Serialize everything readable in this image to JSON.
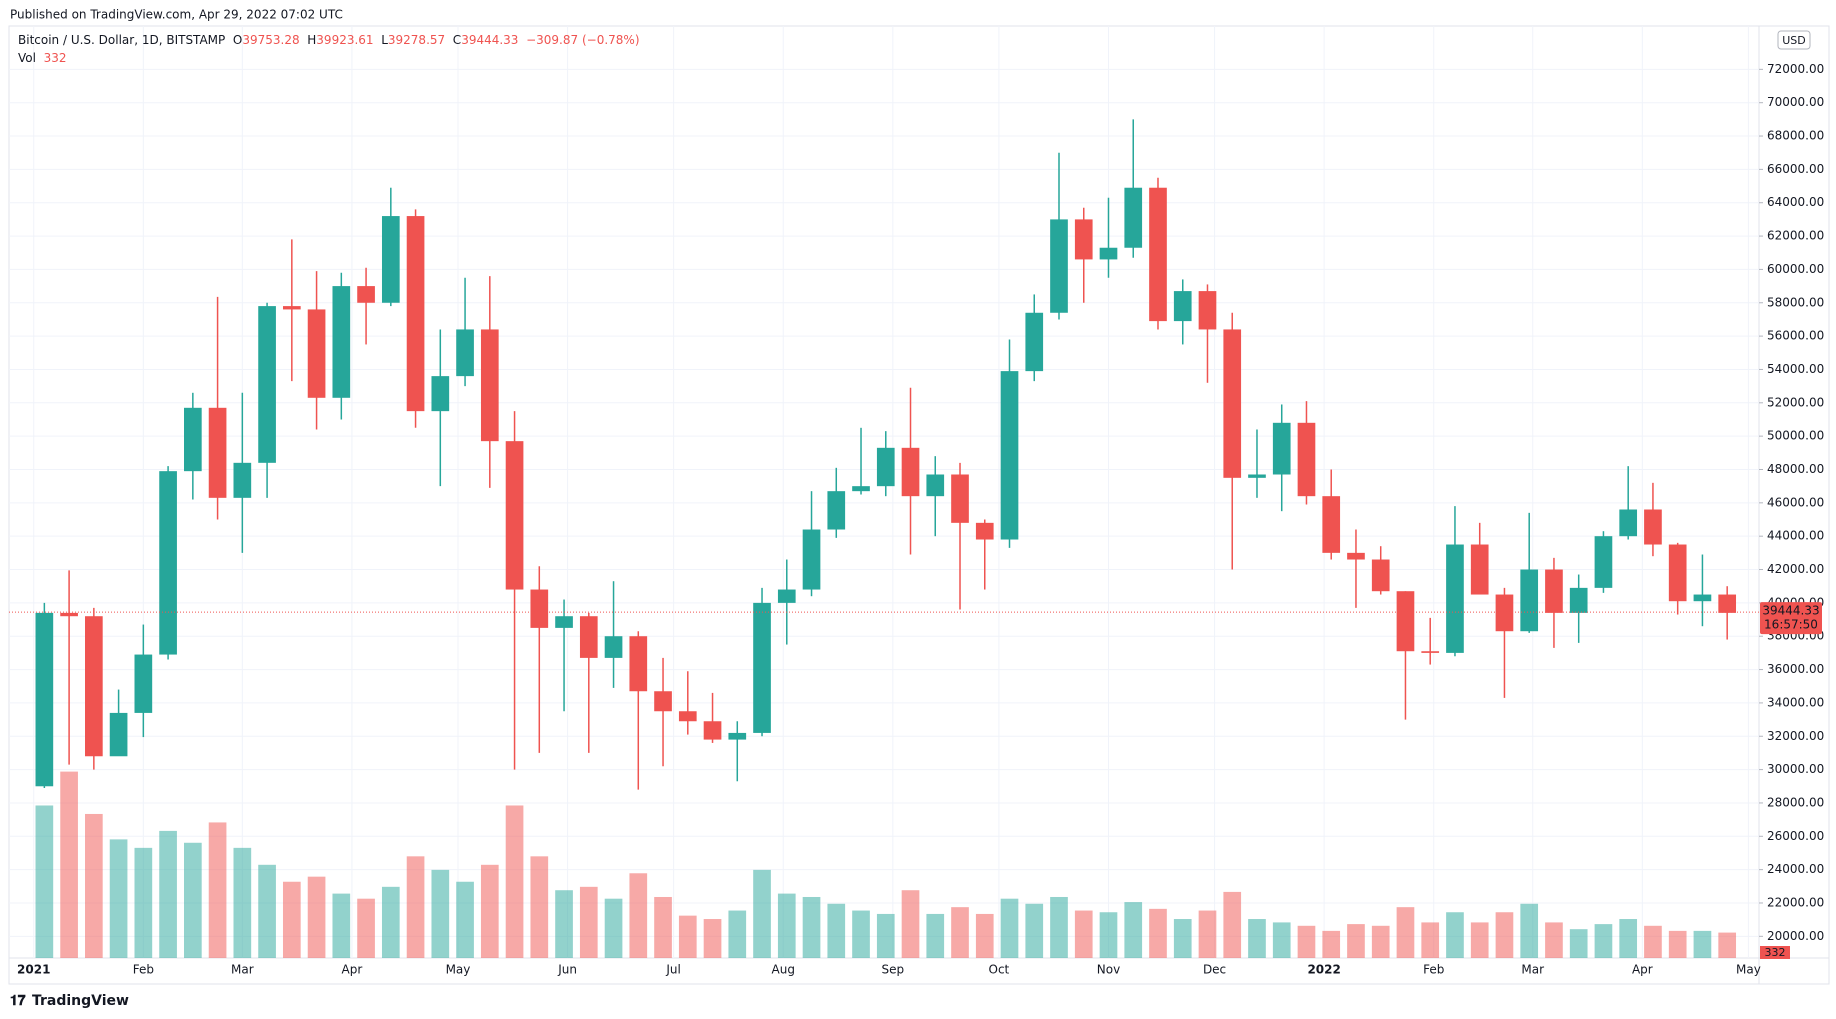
{
  "published": "Published on TradingView.com, Apr 29, 2022 07:02 UTC",
  "logo": "TradingView",
  "chart_data": {
    "type": "candlestick",
    "symbol": "Bitcoin / U.S. Dollar, 1D, BITSTAMP",
    "ohlc_labels": {
      "open": "O",
      "high": "H",
      "low": "L",
      "close": "C"
    },
    "ohlc": {
      "open": 39753.28,
      "high": 39923.61,
      "low": 39278.57,
      "close": 39444.33
    },
    "change": {
      "value": -309.87,
      "label": "−309.87"
    },
    "change_pct": {
      "value": -0.78,
      "label": "(−0.78%)"
    },
    "volume_title": "Vol",
    "last_volume": 332,
    "countdown": "16:57:50",
    "currency": "USD",
    "up_color": "#26a69a",
    "down_color": "#ef5350",
    "grid": true,
    "xlim": [
      -7,
      488
    ],
    "ylim": [
      18700,
      74600
    ],
    "volume_lim": [
      0,
      55000
    ],
    "xticks": [
      {
        "value": 0,
        "label": "2021"
      },
      {
        "value": 31,
        "label": "Feb"
      },
      {
        "value": 59,
        "label": "Mar"
      },
      {
        "value": 90,
        "label": "Apr"
      },
      {
        "value": 120,
        "label": "May"
      },
      {
        "value": 151,
        "label": "Jun"
      },
      {
        "value": 181,
        "label": "Jul"
      },
      {
        "value": 212,
        "label": "Aug"
      },
      {
        "value": 243,
        "label": "Sep"
      },
      {
        "value": 273,
        "label": "Oct"
      },
      {
        "value": 304,
        "label": "Nov"
      },
      {
        "value": 334,
        "label": "Dec"
      },
      {
        "value": 365,
        "label": "2022"
      },
      {
        "value": 396,
        "label": "Feb"
      },
      {
        "value": 424,
        "label": "Mar"
      },
      {
        "value": 455,
        "label": "Apr"
      },
      {
        "value": 485,
        "label": "May"
      }
    ],
    "yticks": [
      {
        "value": 20000,
        "label": "20000.00"
      },
      {
        "value": 22000,
        "label": "22000.00"
      },
      {
        "value": 24000,
        "label": "24000.00"
      },
      {
        "value": 26000,
        "label": "26000.00"
      },
      {
        "value": 28000,
        "label": "28000.00"
      },
      {
        "value": 30000,
        "label": "30000.00"
      },
      {
        "value": 32000,
        "label": "32000.00"
      },
      {
        "value": 34000,
        "label": "34000.00"
      },
      {
        "value": 36000,
        "label": "36000.00"
      },
      {
        "value": 38000,
        "label": "38000.00"
      },
      {
        "value": 40000,
        "label": "40000.00"
      },
      {
        "value": 42000,
        "label": "42000.00"
      },
      {
        "value": 44000,
        "label": "44000.00"
      },
      {
        "value": 46000,
        "label": "46000.00"
      },
      {
        "value": 48000,
        "label": "48000.00"
      },
      {
        "value": 50000,
        "label": "50000.00"
      },
      {
        "value": 52000,
        "label": "52000.00"
      },
      {
        "value": 54000,
        "label": "54000.00"
      },
      {
        "value": 56000,
        "label": "56000.00"
      },
      {
        "value": 58000,
        "label": "58000.00"
      },
      {
        "value": 60000,
        "label": "60000.00"
      },
      {
        "value": 62000,
        "label": "62000.00"
      },
      {
        "value": 64000,
        "label": "64000.00"
      },
      {
        "value": 66000,
        "label": "66000.00"
      },
      {
        "value": 68000,
        "label": "68000.00"
      },
      {
        "value": 70000,
        "label": "70000.00"
      },
      {
        "value": 72000,
        "label": "72000.00"
      }
    ],
    "x": [
      0,
      7,
      14,
      21,
      28,
      35,
      42,
      49,
      56,
      63,
      70,
      77,
      84,
      91,
      98,
      105,
      112,
      119,
      126,
      133,
      140,
      147,
      154,
      161,
      168,
      175,
      182,
      189,
      196,
      203,
      210,
      217,
      224,
      231,
      238,
      245,
      252,
      259,
      266,
      273,
      280,
      287,
      294,
      301,
      308,
      315,
      322,
      329,
      336,
      343,
      350,
      357,
      364,
      371,
      378,
      385,
      392,
      399,
      406,
      413,
      420,
      427,
      434,
      441,
      448,
      455,
      462,
      469,
      476
    ],
    "open": [
      29000,
      39400,
      39200,
      30800,
      33400,
      36900,
      47900,
      51700,
      46300,
      48400,
      57800,
      57600,
      52300,
      59000,
      58000,
      63200,
      51500,
      53600,
      56400,
      49700,
      40800,
      38500,
      39200,
      36700,
      38000,
      34700,
      33500,
      32900,
      31800,
      32200,
      40000,
      40800,
      44400,
      46700,
      47000,
      49300,
      46400,
      47700,
      44800,
      43800,
      53900,
      57400,
      63000,
      60600,
      61300,
      64900,
      56900,
      58700,
      56400,
      47500,
      47700,
      50800,
      46400,
      43000,
      42600,
      40700,
      37100,
      37000,
      43500,
      40500,
      38300,
      42000,
      39400,
      40900,
      44000,
      45600,
      43500,
      40100,
      40500
    ],
    "high": [
      40000,
      41950,
      39700,
      34800,
      38700,
      48200,
      52600,
      58350,
      52600,
      58000,
      61800,
      59900,
      59800,
      60100,
      64900,
      63600,
      56400,
      59500,
      59600,
      51500,
      42200,
      40200,
      39400,
      41300,
      38300,
      36700,
      35900,
      34600,
      32900,
      40900,
      42600,
      46700,
      48100,
      50500,
      50300,
      52900,
      48800,
      48400,
      45000,
      55800,
      58500,
      67000,
      63700,
      64300,
      69000,
      65500,
      59400,
      59100,
      57400,
      50400,
      51900,
      52100,
      48000,
      44400,
      43400,
      40700,
      39100,
      45800,
      44800,
      40900,
      45400,
      42700,
      41700,
      44300,
      48200,
      47200,
      43600,
      42900,
      41000
    ],
    "low": [
      28900,
      30300,
      30000,
      30900,
      31950,
      36600,
      46200,
      45000,
      43000,
      46300,
      53300,
      50400,
      51000,
      55500,
      57800,
      50500,
      47000,
      53000,
      46900,
      30000,
      31000,
      33500,
      31000,
      34900,
      28800,
      30200,
      32100,
      31600,
      29300,
      32000,
      37500,
      40400,
      43900,
      46500,
      46400,
      42900,
      44000,
      39600,
      40800,
      43300,
      53300,
      57000,
      58000,
      59500,
      60700,
      56400,
      55500,
      53200,
      42000,
      46300,
      45500,
      45900,
      42600,
      39700,
      40500,
      33000,
      36300,
      36800,
      40700,
      34300,
      38200,
      37300,
      37600,
      40600,
      43800,
      42800,
      39300,
      38600,
      37800
    ],
    "close": [
      39400,
      39200,
      30800,
      33400,
      36900,
      47900,
      51700,
      46300,
      48400,
      57800,
      57600,
      52300,
      59000,
      58000,
      63200,
      51500,
      53600,
      56400,
      49700,
      40800,
      38500,
      39200,
      36700,
      38000,
      34700,
      33500,
      32900,
      31800,
      32200,
      40000,
      40800,
      44400,
      46700,
      47000,
      49300,
      46400,
      47700,
      44800,
      43800,
      53900,
      57400,
      63000,
      60600,
      61300,
      64900,
      56900,
      58700,
      56400,
      47500,
      47700,
      50800,
      46400,
      43000,
      42600,
      40700,
      37100,
      37000,
      43500,
      40500,
      38300,
      42000,
      39400,
      40900,
      44000,
      45600,
      43500,
      40100,
      40500,
      39400
    ],
    "volume": [
      9000,
      11000,
      8500,
      7000,
      6500,
      7500,
      6800,
      8000,
      6500,
      5500,
      4500,
      4800,
      3800,
      3500,
      4200,
      6000,
      5200,
      4500,
      5500,
      9000,
      6000,
      4000,
      4200,
      3500,
      5000,
      3600,
      2500,
      2300,
      2800,
      5200,
      3800,
      3600,
      3200,
      2800,
      2600,
      4000,
      2600,
      3000,
      2600,
      3500,
      3200,
      3600,
      2800,
      2700,
      3300,
      2900,
      2300,
      2800,
      3900,
      2300,
      2100,
      1900,
      1600,
      2000,
      1900,
      3000,
      2100,
      2700,
      2100,
      2700,
      3200,
      2100,
      1700,
      2000,
      2300,
      1900,
      1600,
      1600,
      1500
    ]
  }
}
